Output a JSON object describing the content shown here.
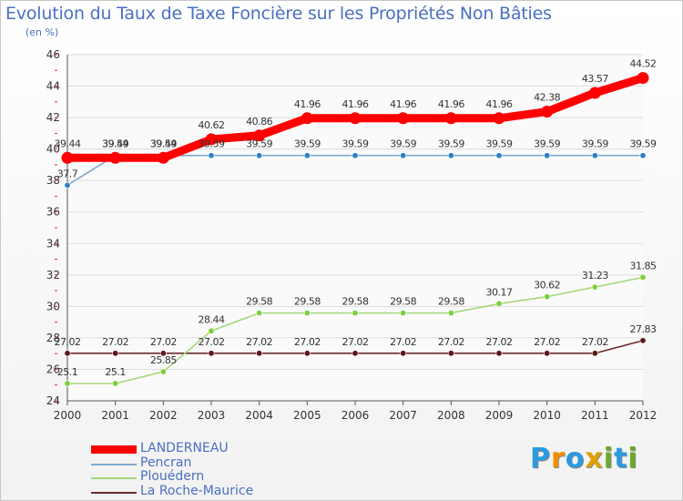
{
  "title": "Evolution du Taux de Taxe Foncière sur les Propriétés Non Bâties",
  "unit_label": "(en %)",
  "logo": {
    "letters": [
      "P",
      "r",
      "o",
      "x",
      "i",
      "t",
      "i"
    ],
    "colors": [
      "#2a9be0",
      "#f28c00",
      "#2a9be0",
      "#e0a000",
      "#6aaa2a",
      "#2a9be0",
      "#6aaa2a"
    ]
  },
  "chart_data": {
    "type": "line",
    "title": "Evolution du Taux de Taxe Foncière sur les Propriétés Non Bâties",
    "ylabel": "(en %)",
    "xlabel": "",
    "categories": [
      "2000",
      "2001",
      "2002",
      "2003",
      "2004",
      "2005",
      "2006",
      "2007",
      "2008",
      "2009",
      "2010",
      "2011",
      "2012"
    ],
    "ylim": [
      24,
      46
    ],
    "yticks": [
      "24",
      "26",
      "28",
      "30",
      "32",
      "34",
      "36",
      "38",
      "40",
      "42",
      "44",
      "46"
    ],
    "series": [
      {
        "name": "LANDERNEAU",
        "color": "#ff0000",
        "style": "bold",
        "values": [
          39.44,
          39.44,
          39.44,
          40.62,
          40.86,
          41.96,
          41.96,
          41.96,
          41.96,
          41.96,
          42.38,
          43.57,
          44.52
        ],
        "labels": [
          "39.44",
          "39.44",
          "39.44",
          "40.62",
          "40.86",
          "41.96",
          "41.96",
          "41.96",
          "41.96",
          "41.96",
          "42.38",
          "43.57",
          "44.52"
        ]
      },
      {
        "name": "Pencran",
        "color": "#7ea9cf",
        "marker": "#2f7fc4",
        "values": [
          37.7,
          39.59,
          39.59,
          39.59,
          39.59,
          39.59,
          39.59,
          39.59,
          39.59,
          39.59,
          39.59,
          39.59,
          39.59
        ],
        "labels": [
          "37.7",
          "39.59",
          "39.59",
          "39.59",
          "39.59",
          "39.59",
          "39.59",
          "39.59",
          "39.59",
          "39.59",
          "39.59",
          "39.59",
          "39.59"
        ]
      },
      {
        "name": "Plouédern",
        "color": "#a6d87a",
        "marker": "#7ccf3a",
        "values": [
          25.1,
          25.1,
          25.85,
          28.44,
          29.58,
          29.58,
          29.58,
          29.58,
          29.58,
          30.17,
          30.62,
          31.23,
          31.85
        ],
        "labels": [
          "25.1",
          "25.1",
          "25.85",
          "28.44",
          "29.58",
          "29.58",
          "29.58",
          "29.58",
          "29.58",
          "30.17",
          "30.62",
          "31.23",
          "31.85"
        ]
      },
      {
        "name": "La Roche-Maurice",
        "color": "#6b2a2a",
        "marker": "#5a1a1a",
        "values": [
          27.02,
          27.02,
          27.02,
          27.02,
          27.02,
          27.02,
          27.02,
          27.02,
          27.02,
          27.02,
          27.02,
          27.02,
          27.83
        ],
        "labels": [
          "27.02",
          "27.02",
          "27.02",
          "27.02",
          "27.02",
          "27.02",
          "27.02",
          "27.02",
          "27.02",
          "27.02",
          "27.02",
          "27.02",
          "27.83"
        ]
      }
    ],
    "grid": "horizontal",
    "legend": "bottom-left"
  }
}
